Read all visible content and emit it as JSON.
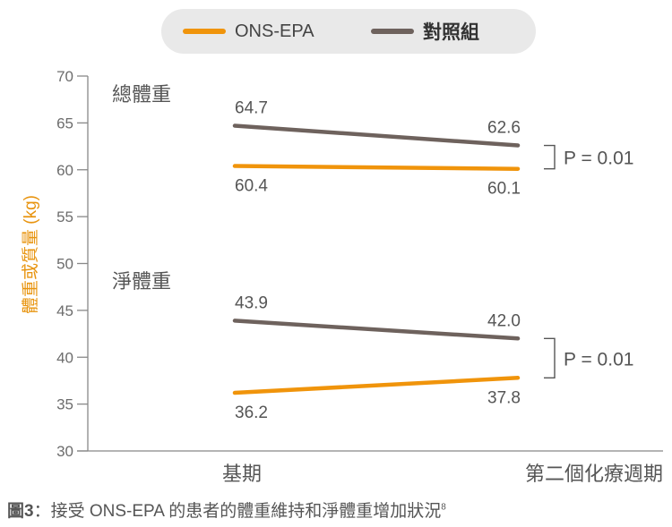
{
  "legend": [
    {
      "label": "ONS-EPA",
      "color": "#f0940b"
    },
    {
      "label": "對照組",
      "color": "#6e625d"
    }
  ],
  "caption": {
    "fig_no": "圖3",
    "text": "：接受 ONS-EPA 的患者的體重維持和淨體重增加狀況",
    "ref": "8"
  },
  "chart_data": {
    "type": "line",
    "categories": [
      "基期",
      "第二個化療週期"
    ],
    "ylabel": "體重或質量 (kg)",
    "ylim": [
      30,
      70
    ],
    "yticks": [
      30,
      35,
      40,
      45,
      50,
      55,
      60,
      65,
      70
    ],
    "groups": [
      {
        "label": "總體重",
        "series": [
          {
            "name": "對照組",
            "values": [
              64.7,
              62.6
            ],
            "labels": [
              "64.7",
              "62.6"
            ],
            "color": "#6e625d"
          },
          {
            "name": "ONS-EPA",
            "values": [
              60.4,
              60.1
            ],
            "labels": [
              "60.4",
              "60.1"
            ],
            "color": "#f0940b"
          }
        ],
        "p_value": "P = 0.01"
      },
      {
        "label": "淨體重",
        "series": [
          {
            "name": "對照組",
            "values": [
              43.9,
              42.0
            ],
            "labels": [
              "43.9",
              "42.0"
            ],
            "color": "#6e625d"
          },
          {
            "name": "ONS-EPA",
            "values": [
              36.2,
              37.8
            ],
            "labels": [
              "36.2",
              "37.8"
            ],
            "color": "#f0940b"
          }
        ],
        "p_value": "P = 0.01"
      }
    ]
  }
}
